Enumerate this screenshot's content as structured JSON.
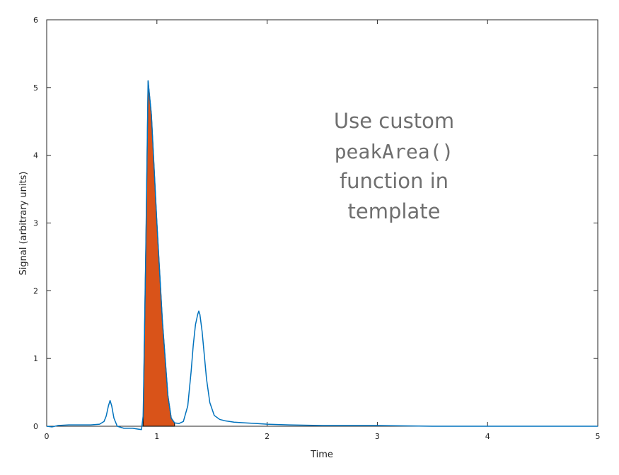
{
  "chart_data": {
    "type": "area",
    "title": "",
    "xlabel": "Time",
    "ylabel": "Signal (arbitrary units)",
    "xlim": [
      0,
      5
    ],
    "ylim": [
      0,
      6
    ],
    "xticks": [
      "0",
      "1",
      "2",
      "3",
      "4",
      "5"
    ],
    "yticks": [
      "0",
      "1",
      "2",
      "3",
      "4",
      "5",
      "6"
    ],
    "grid": false,
    "series": [
      {
        "kind": "line",
        "color": "#0072bd",
        "x": [
          0.0,
          0.05,
          0.1,
          0.2,
          0.3,
          0.4,
          0.48,
          0.52,
          0.54,
          0.56,
          0.575,
          0.59,
          0.61,
          0.64,
          0.7,
          0.78,
          0.82,
          0.86,
          0.875,
          0.88,
          0.9,
          0.92,
          0.95,
          1.0,
          1.05,
          1.1,
          1.13,
          1.16,
          1.2,
          1.24,
          1.28,
          1.31,
          1.33,
          1.35,
          1.37,
          1.38,
          1.39,
          1.41,
          1.43,
          1.45,
          1.48,
          1.52,
          1.57,
          1.62,
          1.7,
          1.8,
          1.9,
          2.0,
          2.2,
          2.5,
          3.0,
          3.5,
          4.0,
          4.5,
          5.0
        ],
        "y": [
          0.0,
          -0.01,
          0.01,
          0.02,
          0.02,
          0.02,
          0.03,
          0.07,
          0.15,
          0.3,
          0.38,
          0.3,
          0.12,
          0.0,
          -0.03,
          -0.03,
          -0.04,
          -0.05,
          0.15,
          0.6,
          2.7,
          5.1,
          4.6,
          3.0,
          1.55,
          0.45,
          0.12,
          0.05,
          0.04,
          0.07,
          0.3,
          0.8,
          1.2,
          1.5,
          1.65,
          1.7,
          1.65,
          1.4,
          1.05,
          0.7,
          0.35,
          0.16,
          0.1,
          0.08,
          0.06,
          0.05,
          0.04,
          0.03,
          0.02,
          0.01,
          0.01,
          0.0,
          0.0,
          0.0,
          0.0
        ]
      },
      {
        "kind": "filled-area",
        "color": "#d95319",
        "x": [
          0.875,
          0.88,
          0.9,
          0.92,
          0.95,
          1.0,
          1.05,
          1.1,
          1.13,
          1.16
        ],
        "y": [
          0.0,
          0.6,
          2.7,
          5.1,
          4.6,
          3.0,
          1.55,
          0.45,
          0.12,
          0.05
        ]
      }
    ],
    "annotation": {
      "color": "#6f6f6f",
      "lines": [
        "Use custom",
        "peakArea()",
        "function in",
        "template"
      ]
    }
  }
}
